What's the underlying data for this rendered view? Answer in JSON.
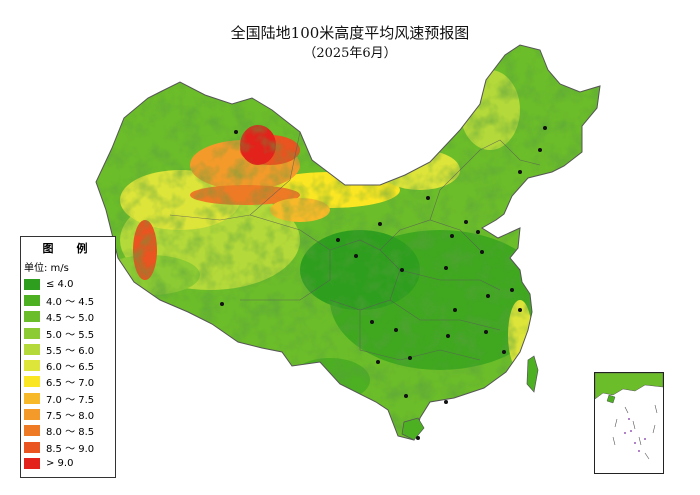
{
  "title": "全国陆地100米高度平均风速预报图",
  "subtitle": "（2025年6月）",
  "legend": {
    "title": "图　例",
    "unit_label": "单位: m/s",
    "classes": [
      {
        "label": "≤ 4.0",
        "color": "#2e9e1e"
      },
      {
        "label": "4.0 ～ 4.5",
        "color": "#4daf22"
      },
      {
        "label": "4.5 ～ 5.0",
        "color": "#6cbd2a"
      },
      {
        "label": "5.0 ～ 5.5",
        "color": "#8ccb33"
      },
      {
        "label": "5.5 ～ 6.0",
        "color": "#b4d93a"
      },
      {
        "label": "6.0 ～ 6.5",
        "color": "#dde43a"
      },
      {
        "label": "6.5 ～ 7.0",
        "color": "#fbe623"
      },
      {
        "label": "7.0 ～ 7.5",
        "color": "#f7b92a"
      },
      {
        "label": "7.5 ～ 8.0",
        "color": "#f39a2a"
      },
      {
        "label": "8.0 ～ 8.5",
        "color": "#ef7a25"
      },
      {
        "label": "8.5 ～ 9.0",
        "color": "#e95420"
      },
      {
        "label": "> 9.0",
        "color": "#e3221b"
      }
    ]
  },
  "map": {
    "region": "china",
    "inset": "south-china-sea-islands",
    "colors": {
      "border": "#555555",
      "city_dot": "#111111",
      "sea": "#ffffff"
    }
  }
}
